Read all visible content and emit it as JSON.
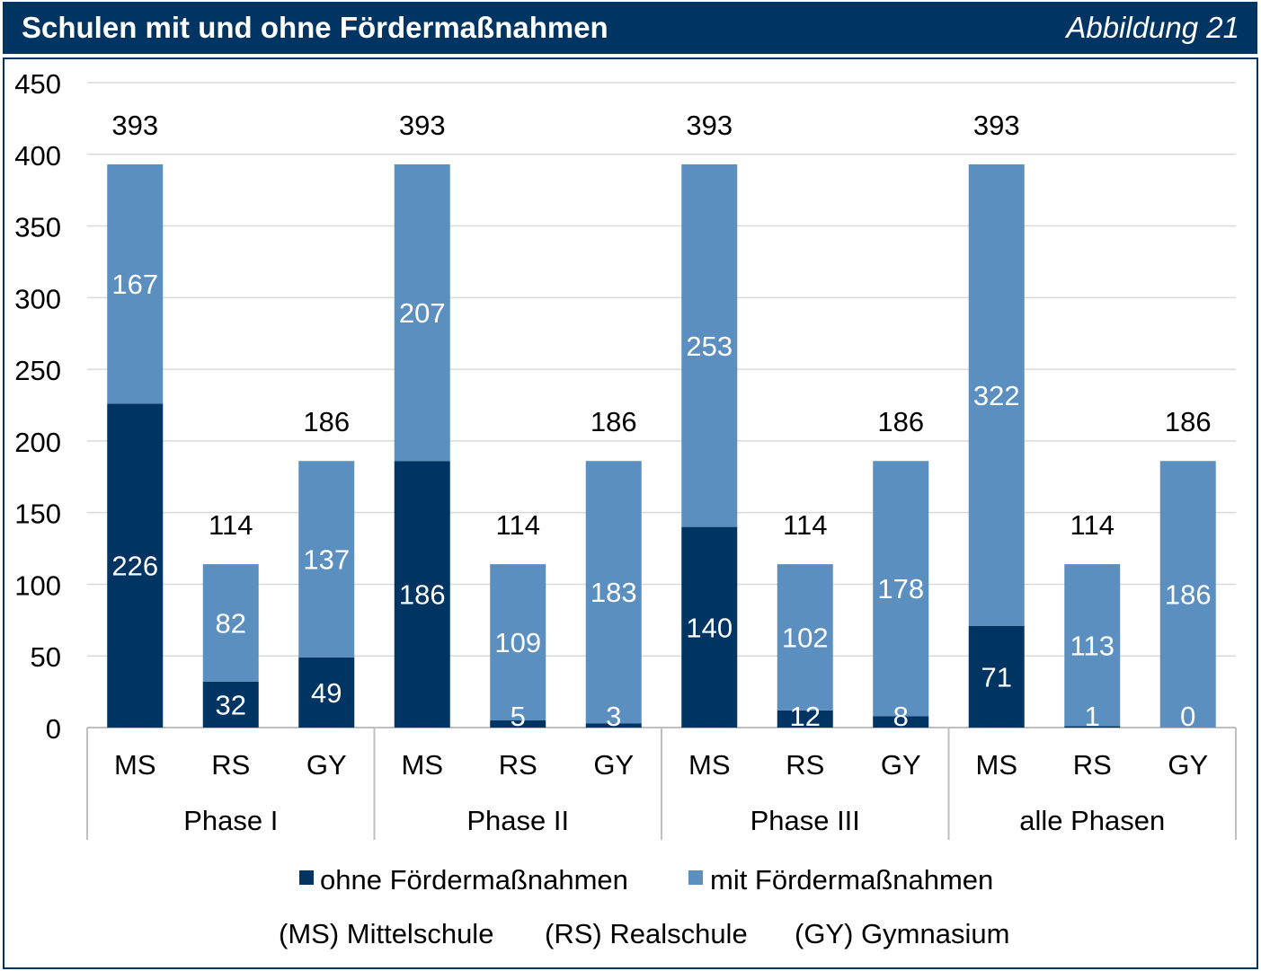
{
  "header": {
    "title": "Schulen mit und ohne Fördermaßnahmen",
    "figure_label": "Abbildung 21"
  },
  "colors": {
    "header_bg": "#003463",
    "ohne": "#003463",
    "mit": "#5B8FC0",
    "gridline": "#D9D9D9",
    "axis": "#BFBFBF",
    "text": "#000000",
    "label_inside": "#FFFFFF"
  },
  "chart_data": {
    "type": "bar",
    "stacked": true,
    "ylim": [
      0,
      450
    ],
    "yticks": [
      0,
      50,
      100,
      150,
      200,
      250,
      300,
      350,
      400,
      450
    ],
    "grid": true,
    "legend_position": "bottom",
    "groups": [
      "Phase I",
      "Phase II",
      "Phase III",
      "alle Phasen"
    ],
    "categories": [
      "MS",
      "RS",
      "GY"
    ],
    "series": [
      {
        "name": "ohne Fördermaßnahmen",
        "values": [
          [
            226,
            32,
            49
          ],
          [
            186,
            5,
            3
          ],
          [
            140,
            12,
            8
          ],
          [
            71,
            1,
            0
          ]
        ]
      },
      {
        "name": "mit Fördermaßnahmen",
        "values": [
          [
            167,
            82,
            137
          ],
          [
            207,
            109,
            183
          ],
          [
            253,
            102,
            178
          ],
          [
            322,
            113,
            186
          ]
        ]
      }
    ],
    "totals": [
      [
        393,
        114,
        186
      ],
      [
        393,
        114,
        186
      ],
      [
        393,
        114,
        186
      ],
      [
        393,
        114,
        186
      ]
    ],
    "footnote": [
      "(MS) Mittelschule",
      "(RS) Realschule",
      "(GY) Gymnasium"
    ]
  }
}
